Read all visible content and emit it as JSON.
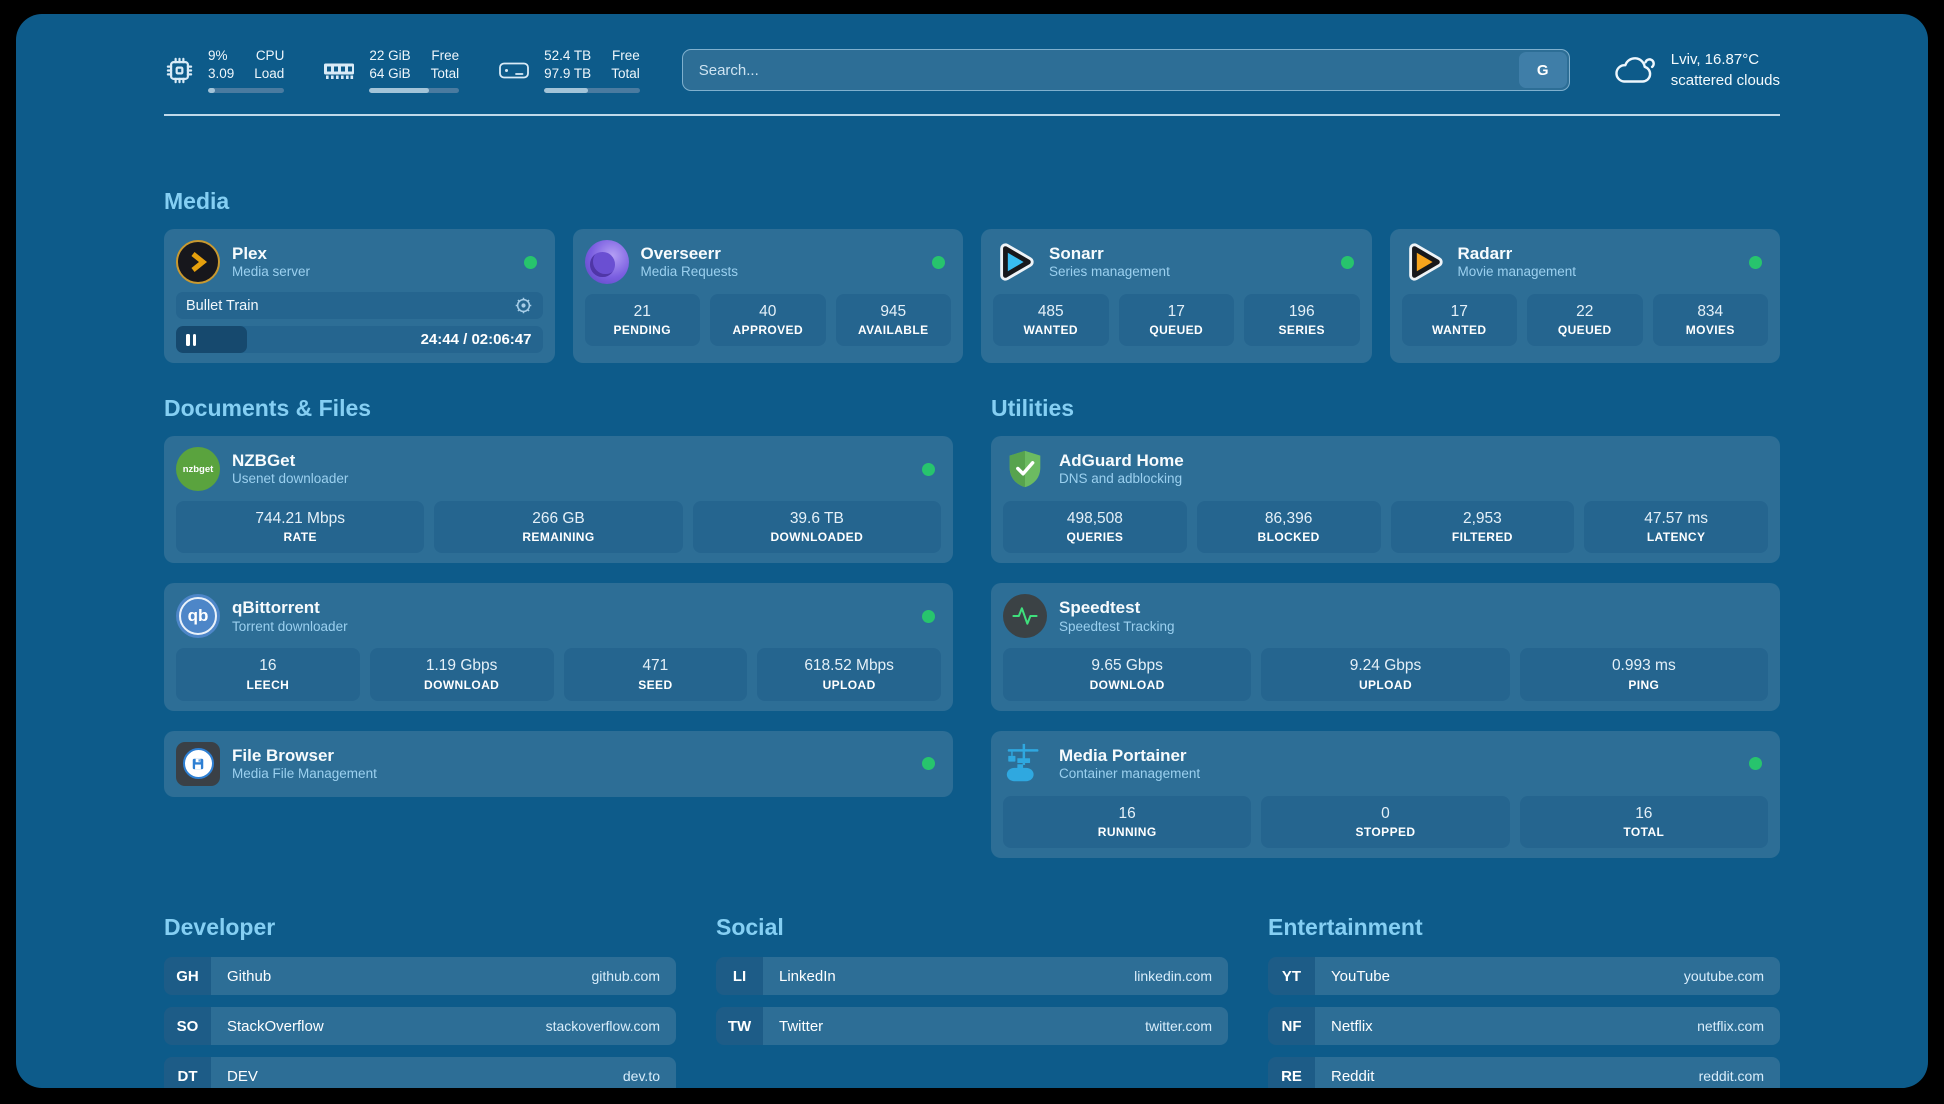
{
  "colors": {
    "background": "#000000",
    "panel": "#0d5b8a",
    "card": "#2d6e96",
    "tile": "#25658f",
    "accent_text": "#85cff3",
    "status_online": "#27c46d"
  },
  "header": {
    "stats": [
      {
        "name": "CPU",
        "icon": "cpu-icon",
        "values": [
          "9%",
          "3.09"
        ],
        "labels": [
          "CPU",
          "Load"
        ],
        "progress": 9
      },
      {
        "name": "RAM",
        "icon": "ram-icon",
        "values": [
          "22 GiB",
          "64 GiB"
        ],
        "labels": [
          "Free",
          "Total"
        ],
        "progress": 66
      },
      {
        "name": "Disk",
        "icon": "disk-icon",
        "values": [
          "52.4 TB",
          "97.9 TB"
        ],
        "labels": [
          "Free",
          "Total"
        ],
        "progress": 46
      }
    ],
    "search": {
      "placeholder": "Search...",
      "button_label": "G"
    },
    "weather": {
      "location": "Lviv, 16.87°C",
      "condition": "scattered clouds"
    }
  },
  "sections": {
    "media": {
      "title": "Media",
      "cards": [
        {
          "name": "Plex",
          "subtitle": "Media server",
          "status": "online",
          "now_playing": {
            "title": "Bullet Train",
            "time_display": "24:44 / 02:06:47",
            "progress": 19.5
          }
        },
        {
          "name": "Overseerr",
          "subtitle": "Media Requests",
          "status": "online",
          "stats": [
            {
              "value": "21",
              "label": "PENDING"
            },
            {
              "value": "40",
              "label": "APPROVED"
            },
            {
              "value": "945",
              "label": "AVAILABLE"
            }
          ]
        },
        {
          "name": "Sonarr",
          "subtitle": "Series management",
          "status": "online",
          "stats": [
            {
              "value": "485",
              "label": "WANTED"
            },
            {
              "value": "17",
              "label": "QUEUED"
            },
            {
              "value": "196",
              "label": "SERIES"
            }
          ]
        },
        {
          "name": "Radarr",
          "subtitle": "Movie management",
          "status": "online",
          "stats": [
            {
              "value": "17",
              "label": "WANTED"
            },
            {
              "value": "22",
              "label": "QUEUED"
            },
            {
              "value": "834",
              "label": "MOVIES"
            }
          ]
        }
      ]
    },
    "documents": {
      "title": "Documents & Files",
      "cards": [
        {
          "name": "NZBGet",
          "subtitle": "Usenet downloader",
          "status": "online",
          "stats": [
            {
              "value": "744.21 Mbps",
              "label": "RATE"
            },
            {
              "value": "266 GB",
              "label": "REMAINING"
            },
            {
              "value": "39.6 TB",
              "label": "DOWNLOADED"
            }
          ]
        },
        {
          "name": "qBittorrent",
          "subtitle": "Torrent downloader",
          "status": "online",
          "stats": [
            {
              "value": "16",
              "label": "LEECH"
            },
            {
              "value": "1.19 Gbps",
              "label": "DOWNLOAD"
            },
            {
              "value": "471",
              "label": "SEED"
            },
            {
              "value": "618.52 Mbps",
              "label": "UPLOAD"
            }
          ]
        },
        {
          "name": "File Browser",
          "subtitle": "Media File Management",
          "status": "online"
        }
      ]
    },
    "utilities": {
      "title": "Utilities",
      "cards": [
        {
          "name": "AdGuard Home",
          "subtitle": "DNS and adblocking",
          "stats": [
            {
              "value": "498,508",
              "label": "QUERIES"
            },
            {
              "value": "86,396",
              "label": "BLOCKED"
            },
            {
              "value": "2,953",
              "label": "FILTERED"
            },
            {
              "value": "47.57 ms",
              "label": "LATENCY"
            }
          ]
        },
        {
          "name": "Speedtest",
          "subtitle": "Speedtest Tracking",
          "stats": [
            {
              "value": "9.65 Gbps",
              "label": "DOWNLOAD"
            },
            {
              "value": "9.24 Gbps",
              "label": "UPLOAD"
            },
            {
              "value": "0.993 ms",
              "label": "PING"
            }
          ]
        },
        {
          "name": "Media Portainer",
          "subtitle": "Container management",
          "status": "online",
          "stats": [
            {
              "value": "16",
              "label": "RUNNING"
            },
            {
              "value": "0",
              "label": "STOPPED"
            },
            {
              "value": "16",
              "label": "TOTAL"
            }
          ]
        }
      ]
    },
    "bookmarks": [
      {
        "title": "Developer",
        "items": [
          {
            "abbr": "GH",
            "name": "Github",
            "url": "github.com"
          },
          {
            "abbr": "SO",
            "name": "StackOverflow",
            "url": "stackoverflow.com"
          },
          {
            "abbr": "DT",
            "name": "DEV",
            "url": "dev.to"
          }
        ]
      },
      {
        "title": "Social",
        "items": [
          {
            "abbr": "LI",
            "name": "LinkedIn",
            "url": "linkedin.com"
          },
          {
            "abbr": "TW",
            "name": "Twitter",
            "url": "twitter.com"
          }
        ]
      },
      {
        "title": "Entertainment",
        "items": [
          {
            "abbr": "YT",
            "name": "YouTube",
            "url": "youtube.com"
          },
          {
            "abbr": "NF",
            "name": "Netflix",
            "url": "netflix.com"
          },
          {
            "abbr": "RE",
            "name": "Reddit",
            "url": "reddit.com"
          }
        ]
      }
    ]
  }
}
